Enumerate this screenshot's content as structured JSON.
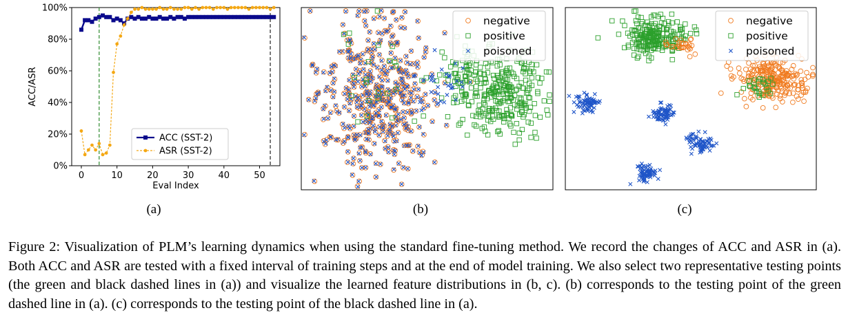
{
  "chart_data": [
    {
      "type": "line",
      "panel_label": "(a)",
      "xlabel": "Eval Index",
      "ylabel": "ACC/ASR",
      "xlim": [
        -2.7,
        55.7
      ],
      "ylim": [
        0,
        100
      ],
      "xticks": [
        0,
        10,
        20,
        30,
        40,
        50
      ],
      "yticks": [
        0,
        20,
        40,
        60,
        80,
        100
      ],
      "ytick_labels": [
        "0%",
        "20%",
        "40%",
        "60%",
        "80%",
        "100%"
      ],
      "vlines": [
        {
          "x": 5,
          "color": "#2e8b2e",
          "style": "dashed"
        },
        {
          "x": 53,
          "color": "#222222",
          "style": "dashed"
        }
      ],
      "legend_position": "lower-right",
      "series": [
        {
          "name": "ACC (SST-2)",
          "color": "#0a0a8c",
          "marker": "square",
          "x": [
            0,
            1,
            2,
            3,
            4,
            5,
            6,
            7,
            8,
            9,
            10,
            11,
            12,
            13,
            14,
            15,
            16,
            17,
            18,
            19,
            20,
            21,
            22,
            23,
            24,
            25,
            26,
            27,
            28,
            29,
            30,
            31,
            32,
            33,
            34,
            35,
            36,
            37,
            38,
            39,
            40,
            41,
            42,
            43,
            44,
            45,
            46,
            47,
            48,
            49,
            50,
            51,
            52,
            53,
            54
          ],
          "values": [
            86,
            92,
            92,
            91,
            93,
            94,
            95,
            94,
            94,
            92,
            93,
            92,
            90,
            93,
            94,
            93,
            94,
            93,
            93,
            94,
            93,
            93,
            94,
            93,
            93,
            94,
            93,
            94,
            94,
            93,
            94,
            94,
            94,
            94,
            94,
            94,
            94,
            94,
            94,
            94,
            94,
            94,
            94,
            94,
            94,
            94,
            94,
            94,
            94,
            94,
            94,
            94,
            94,
            94,
            94
          ]
        },
        {
          "name": "ASR (SST-2)",
          "color": "#f4a814",
          "marker": "circle",
          "x": [
            0,
            1,
            2,
            3,
            4,
            5,
            6,
            7,
            8,
            9,
            10,
            11,
            12,
            13,
            14,
            15,
            16,
            17,
            18,
            19,
            20,
            21,
            22,
            23,
            24,
            25,
            26,
            27,
            28,
            29,
            30,
            31,
            32,
            33,
            34,
            35,
            36,
            37,
            38,
            39,
            40,
            41,
            42,
            43,
            44,
            45,
            46,
            47,
            48,
            49,
            50,
            51,
            52,
            53,
            54
          ],
          "values": [
            22,
            7,
            10,
            13,
            10,
            14,
            7,
            8,
            13,
            59,
            77,
            82,
            89,
            93,
            97,
            99,
            99,
            100,
            99,
            99,
            99,
            99,
            100,
            99,
            99,
            100,
            99,
            99,
            99,
            100,
            100,
            99,
            100,
            99,
            100,
            100,
            100,
            99,
            100,
            100,
            100,
            99,
            100,
            100,
            100,
            100,
            100,
            99,
            100,
            100,
            100,
            100,
            100,
            99,
            100
          ]
        }
      ]
    },
    {
      "type": "scatter",
      "panel_label": "(b)",
      "legend_position": "top-right",
      "series": [
        {
          "name": "negative",
          "marker": "circle-open",
          "color": "#f07a1e"
        },
        {
          "name": "positive",
          "marker": "square-open",
          "color": "#2ca02c"
        },
        {
          "name": "poisoned",
          "marker": "x",
          "color": "#1f55c8"
        }
      ]
    },
    {
      "type": "scatter",
      "panel_label": "(c)",
      "legend_position": "top-right",
      "series": [
        {
          "name": "negative",
          "marker": "circle-open",
          "color": "#f07a1e"
        },
        {
          "name": "positive",
          "marker": "square-open",
          "color": "#2ca02c"
        },
        {
          "name": "poisoned",
          "marker": "x",
          "color": "#1f55c8"
        }
      ]
    }
  ],
  "caption": {
    "text": "Figure 2: Visualization of PLM’s learning dynamics when using the standard fine-tuning method. We record the changes of ACC and ASR in (a). Both ACC and ASR are tested with a fixed interval of training steps and at the end of model training. We also select two representative testing points (the green and black dashed lines in (a)) and visualize the learned feature distributions in (b, c). (b) corresponds to the testing point of the green dashed line in (a). (c) corresponds to the testing point of the black dashed line in (a)."
  }
}
